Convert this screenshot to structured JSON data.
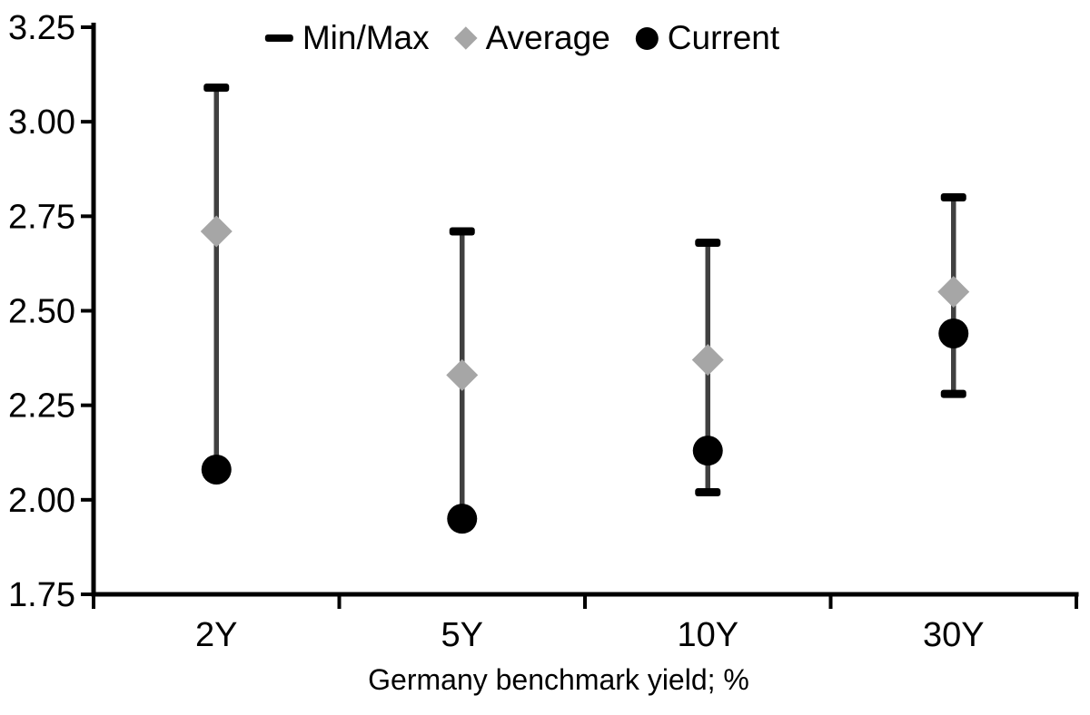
{
  "chart_data": {
    "type": "scatter",
    "title": "",
    "xlabel": "Germany benchmark yield; %",
    "ylabel": "",
    "ylim": [
      1.75,
      3.25
    ],
    "ytick_step": 0.25,
    "yticks": [
      "3.25",
      "3.00",
      "2.75",
      "2.50",
      "2.25",
      "2.00",
      "1.75"
    ],
    "categories": [
      "2Y",
      "5Y",
      "10Y",
      "30Y"
    ],
    "grid": false,
    "legend_position": "top-center",
    "series": [
      {
        "name": "Min/Max",
        "marker": "dash",
        "max": [
          3.09,
          2.71,
          2.68,
          2.8
        ],
        "min": [
          2.08,
          1.95,
          2.02,
          2.28
        ]
      },
      {
        "name": "Average",
        "marker": "diamond",
        "values": [
          2.71,
          2.33,
          2.37,
          2.55
        ]
      },
      {
        "name": "Current",
        "marker": "circle",
        "values": [
          2.08,
          1.95,
          2.13,
          2.44
        ]
      }
    ]
  },
  "colors": {
    "axis": "#000000",
    "text": "#000000",
    "whisker": "#404040",
    "minmax": "#000000",
    "average": "#a6a6a6",
    "current": "#000000",
    "background": "#ffffff"
  }
}
